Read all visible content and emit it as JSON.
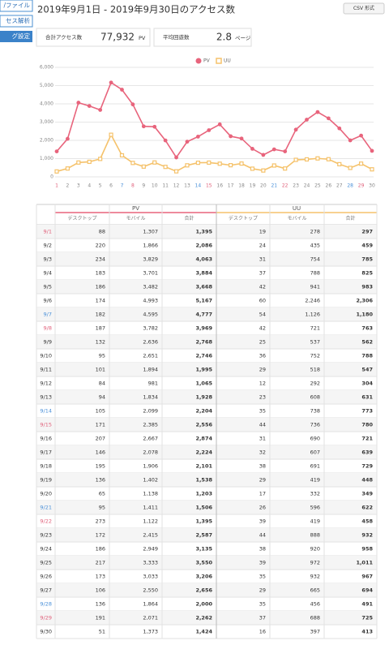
{
  "sidebar": {
    "items": [
      "/ファイル",
      "セス解析",
      "グ設定"
    ]
  },
  "header": {
    "title": "2019年9月1日 - 2019年9月30日のアクセス数",
    "csv_button": "CSV 形式"
  },
  "summary": [
    {
      "label": "合計アクセス数",
      "value": "77,932",
      "unit": "PV"
    },
    {
      "label": "平均回遊数",
      "value": "2.8",
      "unit": "ページ"
    }
  ],
  "chart": {
    "type": "line",
    "categories": [
      "1",
      "2",
      "3",
      "4",
      "5",
      "6",
      "7",
      "8",
      "9",
      "10",
      "11",
      "12",
      "13",
      "14",
      "15",
      "16",
      "17",
      "18",
      "19",
      "20",
      "21",
      "22",
      "23",
      "24",
      "25",
      "26",
      "27",
      "28",
      "29",
      "30"
    ],
    "category_colors": [
      "#e0607a",
      null,
      null,
      null,
      null,
      null,
      "#4a90d9",
      "#e0607a",
      null,
      null,
      null,
      null,
      null,
      "#4a90d9",
      "#e0607a",
      null,
      null,
      null,
      null,
      null,
      "#4a90d9",
      "#e0607a",
      null,
      null,
      null,
      null,
      null,
      "#4a90d9",
      "#e0607a",
      null
    ],
    "series": [
      {
        "name": "PV",
        "color": "#e8647c",
        "values": [
          1395,
          2086,
          4063,
          3884,
          3668,
          5167,
          4777,
          3969,
          2768,
          2746,
          1995,
          1065,
          1928,
          2204,
          2556,
          2874,
          2224,
          2101,
          1538,
          1203,
          1506,
          1395,
          2587,
          3135,
          3550,
          3206,
          2656,
          2000,
          2262,
          1424
        ]
      },
      {
        "name": "UU",
        "color": "#f5c26b",
        "values": [
          297,
          459,
          785,
          825,
          983,
          2306,
          1180,
          763,
          562,
          788,
          547,
          304,
          631,
          773,
          780,
          721,
          639,
          729,
          448,
          349,
          622,
          458,
          932,
          958,
          1011,
          967,
          694,
          491,
          725,
          413
        ]
      }
    ],
    "ylim": [
      0,
      6000
    ],
    "yticks": [
      0,
      {
        "value": 1000,
        "label": "1,000"
      },
      {
        "value": 2000,
        "label": "2,000"
      },
      {
        "value": 3000,
        "label": "3,000"
      },
      {
        "value": 4000,
        "label": "4,000"
      },
      {
        "value": 5000,
        "label": "5,000"
      },
      {
        "value": 6000,
        "label": "6,000"
      }
    ],
    "grid": true
  },
  "table": {
    "groups": [
      "PV",
      "UU"
    ],
    "group_colors": [
      "#e8647c",
      "#f5c26b"
    ],
    "columns": [
      "デスクトップ",
      "モバイル",
      "合計",
      "デスクトップ",
      "モバイル",
      "合計"
    ],
    "rows": [
      [
        "9/1",
        "88",
        "1,307",
        "1,395",
        "19",
        "278",
        "297"
      ],
      [
        "9/2",
        "220",
        "1,866",
        "2,086",
        "24",
        "435",
        "459"
      ],
      [
        "9/3",
        "234",
        "3,829",
        "4,063",
        "31",
        "754",
        "785"
      ],
      [
        "9/4",
        "183",
        "3,701",
        "3,884",
        "37",
        "788",
        "825"
      ],
      [
        "9/5",
        "186",
        "3,482",
        "3,668",
        "42",
        "941",
        "983"
      ],
      [
        "9/6",
        "174",
        "4,993",
        "5,167",
        "60",
        "2,246",
        "2,306"
      ],
      [
        "9/7",
        "182",
        "4,595",
        "4,777",
        "54",
        "1,126",
        "1,180"
      ],
      [
        "9/8",
        "187",
        "3,782",
        "3,969",
        "42",
        "721",
        "763"
      ],
      [
        "9/9",
        "132",
        "2,636",
        "2,768",
        "25",
        "537",
        "562"
      ],
      [
        "9/10",
        "95",
        "2,651",
        "2,746",
        "36",
        "752",
        "788"
      ],
      [
        "9/11",
        "101",
        "1,894",
        "1,995",
        "29",
        "518",
        "547"
      ],
      [
        "9/12",
        "84",
        "981",
        "1,065",
        "12",
        "292",
        "304"
      ],
      [
        "9/13",
        "94",
        "1,834",
        "1,928",
        "23",
        "608",
        "631"
      ],
      [
        "9/14",
        "105",
        "2,099",
        "2,204",
        "35",
        "738",
        "773"
      ],
      [
        "9/15",
        "171",
        "2,385",
        "2,556",
        "44",
        "736",
        "780"
      ],
      [
        "9/16",
        "207",
        "2,667",
        "2,874",
        "31",
        "690",
        "721"
      ],
      [
        "9/17",
        "146",
        "2,078",
        "2,224",
        "32",
        "607",
        "639"
      ],
      [
        "9/18",
        "195",
        "1,906",
        "2,101",
        "38",
        "691",
        "729"
      ],
      [
        "9/19",
        "136",
        "1,402",
        "1,538",
        "29",
        "419",
        "448"
      ],
      [
        "9/20",
        "65",
        "1,138",
        "1,203",
        "17",
        "332",
        "349"
      ],
      [
        "9/21",
        "95",
        "1,411",
        "1,506",
        "26",
        "596",
        "622"
      ],
      [
        "9/22",
        "273",
        "1,122",
        "1,395",
        "39",
        "419",
        "458"
      ],
      [
        "9/23",
        "172",
        "2,415",
        "2,587",
        "44",
        "888",
        "932"
      ],
      [
        "9/24",
        "186",
        "2,949",
        "3,135",
        "38",
        "920",
        "958"
      ],
      [
        "9/25",
        "217",
        "3,333",
        "3,550",
        "39",
        "972",
        "1,011"
      ],
      [
        "9/26",
        "173",
        "3,033",
        "3,206",
        "35",
        "932",
        "967"
      ],
      [
        "9/27",
        "106",
        "2,550",
        "2,656",
        "29",
        "665",
        "694"
      ],
      [
        "9/28",
        "136",
        "1,864",
        "2,000",
        "35",
        "456",
        "491"
      ],
      [
        "9/29",
        "191",
        "2,071",
        "2,262",
        "37",
        "688",
        "725"
      ],
      [
        "9/30",
        "51",
        "1,373",
        "1,424",
        "16",
        "397",
        "413"
      ]
    ]
  }
}
